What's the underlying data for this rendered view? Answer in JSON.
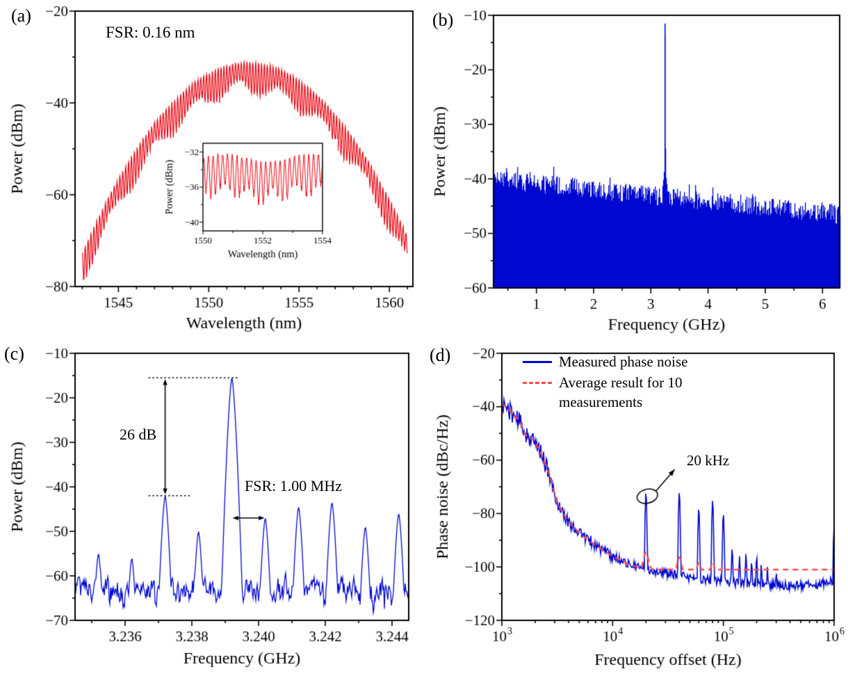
{
  "figure_background": "#ffffff",
  "chart_data": [
    {
      "id": "a",
      "type": "line",
      "panel_label": "(a)",
      "annotation": "FSR: 0.16 nm",
      "xlabel": "Wavelength (nm)",
      "ylabel": "Power (dBm)",
      "xlim": [
        1542.6,
        1561.3
      ],
      "ylim": [
        -80,
        -20
      ],
      "xticks": [
        1545,
        1550,
        1555,
        1560
      ],
      "xtick_labels": [
        "1545",
        "1550",
        "1555",
        "1560"
      ],
      "x_minor_step": 1,
      "yticks": [
        -80,
        -60,
        -40,
        -20
      ],
      "ytick_labels": [
        "−80",
        "−60",
        "−40",
        "−20"
      ],
      "y_minor_step": 10,
      "line_color": "#e8000d",
      "series": {
        "x_start_nm": 1543.0,
        "x_end_nm": 1561.0,
        "envelope_center_nm": 1552.2,
        "envelope_peak_dbm": -31.2,
        "envelope_curvature_db_per_nm2": 0.49,
        "fsr_nm": 0.16,
        "modulation_depth_db": 5.5
      },
      "inset": {
        "xlabel": "Wavelength (nm)",
        "ylabel": "Power (dBm)",
        "xlim": [
          1550,
          1554
        ],
        "ylim": [
          -41,
          -31
        ],
        "xticks": [
          1550,
          1552,
          1554
        ],
        "xtick_labels": [
          "1550",
          "1552",
          "1554"
        ],
        "x_minor_step": 1,
        "yticks": [
          -40,
          -36,
          -32
        ],
        "ytick_labels": [
          "−40",
          "−36",
          "−32"
        ],
        "y_minor_step": 2,
        "line_color": "#e8000d",
        "series": {
          "top_dbm": -32.7,
          "depth_db": 4.0,
          "fsr_nm": 0.16
        }
      }
    },
    {
      "id": "b",
      "type": "line",
      "panel_label": "(b)",
      "xlabel": "Frequency (GHz)",
      "ylabel": "Power (dBm)",
      "xlim": [
        0.25,
        6.3
      ],
      "ylim": [
        -60,
        -10
      ],
      "xticks": [
        1,
        2,
        3,
        4,
        5,
        6
      ],
      "xtick_labels": [
        "1",
        "2",
        "3",
        "4",
        "5",
        "6"
      ],
      "x_minor_step": 0.5,
      "yticks": [
        -60,
        -50,
        -40,
        -30,
        -20,
        -10
      ],
      "ytick_labels": [
        "−60",
        "−50",
        "−40",
        "−30",
        "−20",
        "−10"
      ],
      "y_minor_step": 5,
      "line_color": "#0008d0",
      "noise_floor": {
        "start_dbm": -39.5,
        "end_dbm": -46.0,
        "jitter_db": 3.5
      },
      "main_peak": {
        "frequency_ghz": 3.24,
        "power_dbm": -11.5
      }
    },
    {
      "id": "c",
      "type": "line",
      "panel_label": "(c)",
      "xlabel": "Frequency (GHz)",
      "ylabel": "Power (dBm)",
      "xlim": [
        3.2345,
        3.2445
      ],
      "ylim": [
        -70,
        -10
      ],
      "xticks": [
        3.236,
        3.238,
        3.24,
        3.242,
        3.244
      ],
      "xtick_labels": [
        "3.236",
        "3.238",
        "3.240",
        "3.242",
        "3.244"
      ],
      "x_minor_step": 0.001,
      "yticks": [
        -70,
        -60,
        -50,
        -40,
        -30,
        -20,
        -10
      ],
      "ytick_labels": [
        "−70",
        "−60",
        "−50",
        "−40",
        "−30",
        "−20",
        "−10"
      ],
      "y_minor_step": 5,
      "line_color": "#0008d0",
      "noise_floor_dbm": -63,
      "peaks": [
        {
          "frequency_ghz": 3.2352,
          "power_dbm": -55
        },
        {
          "frequency_ghz": 3.2362,
          "power_dbm": -56
        },
        {
          "frequency_ghz": 3.2372,
          "power_dbm": -42
        },
        {
          "frequency_ghz": 3.2382,
          "power_dbm": -50
        },
        {
          "frequency_ghz": 3.2392,
          "power_dbm": -15.5
        },
        {
          "frequency_ghz": 3.2402,
          "power_dbm": -47
        },
        {
          "frequency_ghz": 3.2412,
          "power_dbm": -44.5
        },
        {
          "frequency_ghz": 3.2422,
          "power_dbm": -43.5
        },
        {
          "frequency_ghz": 3.2432,
          "power_dbm": -49
        },
        {
          "frequency_ghz": 3.2442,
          "power_dbm": -46
        }
      ],
      "annotations": {
        "suppression": {
          "text": "26 dB",
          "arrow_x_ghz": 3.2372,
          "top_dbm": -15.5,
          "bottom_dbm": -42
        },
        "fsr": {
          "text": "FSR: 1.00 MHz",
          "x1_ghz": 3.2392,
          "x2_ghz": 3.2402,
          "y_dbm": -47
        }
      }
    },
    {
      "id": "d",
      "type": "line",
      "panel_label": "(d)",
      "xscale": "log",
      "xlabel": "Frequency offset (Hz)",
      "ylabel": "Phase noise (dBc/Hz)",
      "xlim_log10": [
        3,
        6
      ],
      "xtick_exponents": [
        "3",
        "4",
        "5",
        "6"
      ],
      "ylim": [
        -120,
        -20
      ],
      "yticks": [
        -120,
        -100,
        -80,
        -60,
        -40,
        -20
      ],
      "ytick_labels": [
        "−120",
        "−100",
        "−80",
        "−60",
        "−40",
        "−20"
      ],
      "y_minor_step": 10,
      "legend": [
        {
          "label": "Measured phase noise",
          "color": "#0008d0",
          "style": "solid"
        },
        {
          "label": "Average result for 10 measurements",
          "color": "#fb4a4a",
          "style": "dashed"
        }
      ],
      "annotation": {
        "text": "20 kHz",
        "target_offset_hz": 20000
      },
      "baseline_log10hz_dbc": [
        [
          3.0,
          -38.5
        ],
        [
          3.08,
          -42
        ],
        [
          3.15,
          -45
        ],
        [
          3.22,
          -50
        ],
        [
          3.3,
          -54
        ],
        [
          3.36,
          -57
        ],
        [
          3.42,
          -65
        ],
        [
          3.5,
          -76
        ],
        [
          3.58,
          -82
        ],
        [
          3.65,
          -85
        ],
        [
          3.75,
          -89
        ],
        [
          3.85,
          -92
        ],
        [
          4.0,
          -96
        ],
        [
          4.15,
          -99
        ],
        [
          4.3,
          -101
        ],
        [
          4.5,
          -102.5
        ],
        [
          4.7,
          -104
        ],
        [
          4.9,
          -105
        ],
        [
          5.1,
          -106
        ],
        [
          5.3,
          -106.5
        ],
        [
          5.5,
          -107
        ],
        [
          5.7,
          -107
        ],
        [
          5.85,
          -106.5
        ],
        [
          6.0,
          -105
        ]
      ],
      "spurs": [
        {
          "offset_hz": 13000,
          "dbc": -97
        },
        {
          "offset_hz": 20000,
          "dbc": -72
        },
        {
          "offset_hz": 40000,
          "dbc": -72
        },
        {
          "offset_hz": 60000,
          "dbc": -78
        },
        {
          "offset_hz": 80000,
          "dbc": -75
        },
        {
          "offset_hz": 100000,
          "dbc": -80
        },
        {
          "offset_hz": 120000,
          "dbc": -93
        },
        {
          "offset_hz": 140000,
          "dbc": -96
        },
        {
          "offset_hz": 160000,
          "dbc": -95
        },
        {
          "offset_hz": 180000,
          "dbc": -98
        },
        {
          "offset_hz": 200000,
          "dbc": -96
        },
        {
          "offset_hz": 220000,
          "dbc": -99
        },
        {
          "offset_hz": 250000,
          "dbc": -100
        },
        {
          "offset_hz": 300000,
          "dbc": -102
        },
        {
          "offset_hz": 1000000,
          "dbc": -85
        }
      ]
    }
  ]
}
